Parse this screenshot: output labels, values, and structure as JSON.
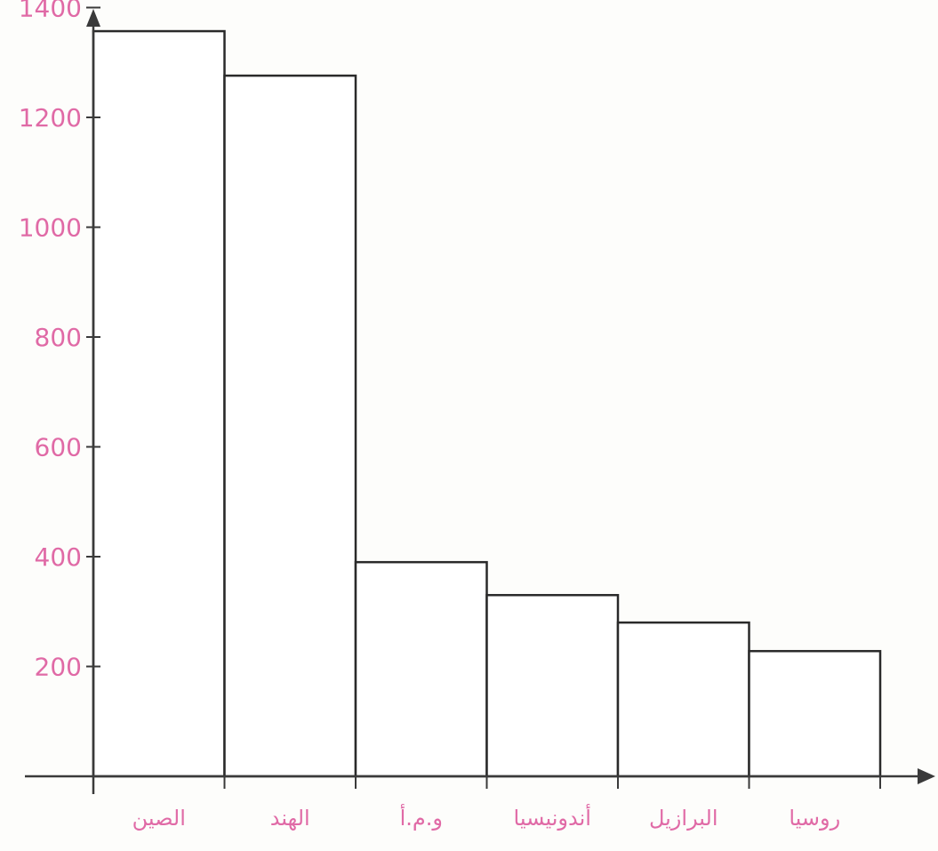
{
  "chart_data": {
    "type": "bar",
    "title": "",
    "xlabel": "",
    "ylabel": "",
    "categories": [
      "الصين",
      "الهند",
      "و.م.أ",
      "أندونيسيا",
      "البرازيل",
      "روسيا"
    ],
    "values": [
      1357,
      1276,
      390,
      330,
      280,
      228
    ],
    "ylim": [
      0,
      1400
    ],
    "yticks": [
      200,
      400,
      600,
      800,
      1000,
      1200,
      1400
    ],
    "ytick_labels": [
      "200",
      "400",
      "600",
      "800",
      "1000",
      "1200",
      "1400"
    ],
    "grid": false,
    "legend": "none",
    "colors": {
      "bar_fill": "#ffffff",
      "bar_stroke": "#2a2a2a",
      "axis": "#3a3a3a",
      "tick_label": "#e06aa6",
      "background": "#fdfdfb"
    }
  }
}
